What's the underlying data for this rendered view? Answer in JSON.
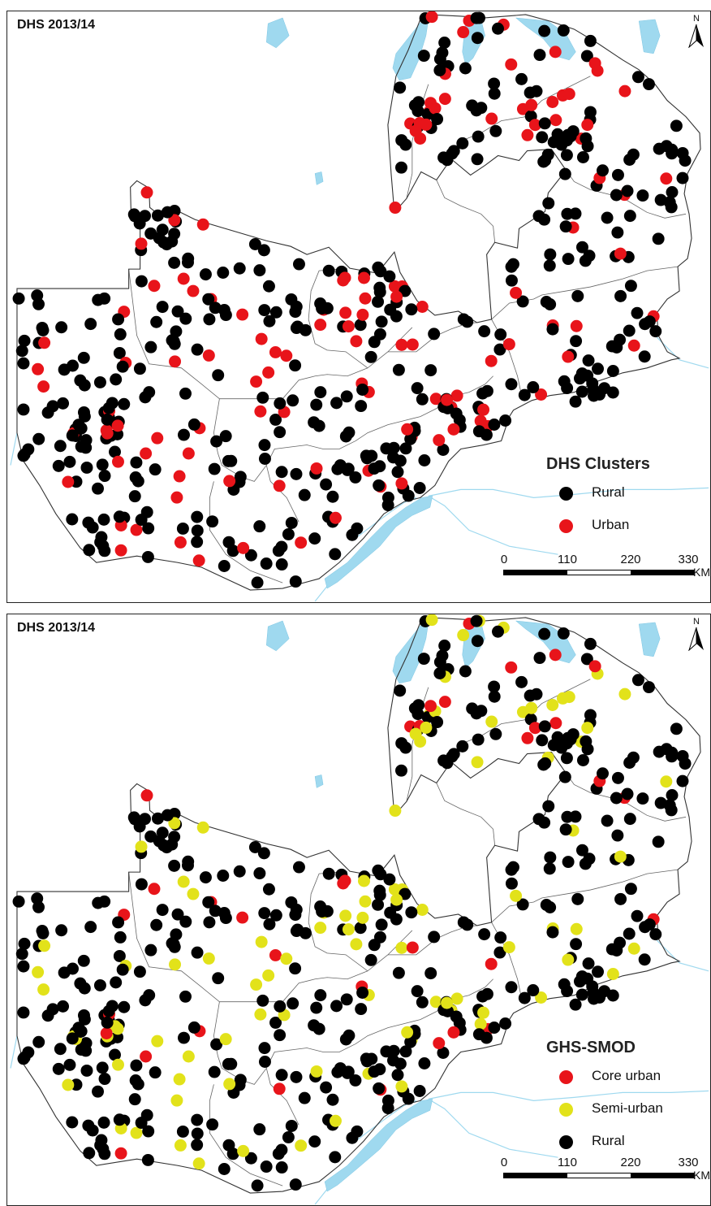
{
  "map": {
    "panels": [
      {
        "id": "dhs",
        "title": "DHS 2013/14",
        "legend": {
          "title": "DHS Clusters",
          "entries": [
            {
              "key": "rural",
              "label": "Rural",
              "color": "#000000"
            },
            {
              "key": "urban",
              "label": "Urban",
              "color": "#e8141a"
            }
          ]
        }
      },
      {
        "id": "ghs",
        "title": "DHS 2013/14",
        "legend": {
          "title": "GHS-SMOD",
          "entries": [
            {
              "key": "core",
              "label": "Core urban",
              "color": "#e8141a"
            },
            {
              "key": "semi",
              "label": "Semi-urban",
              "color": "#e2e21a"
            },
            {
              "key": "rural",
              "label": "Rural",
              "color": "#000000"
            }
          ]
        }
      }
    ],
    "north_label": "N",
    "scale": {
      "ticks": [
        "0",
        "110",
        "220",
        "330"
      ],
      "unit": "KM"
    },
    "colors": {
      "water": "#9fd9ef",
      "border": "#333333",
      "river": "#9fd9ef"
    }
  }
}
